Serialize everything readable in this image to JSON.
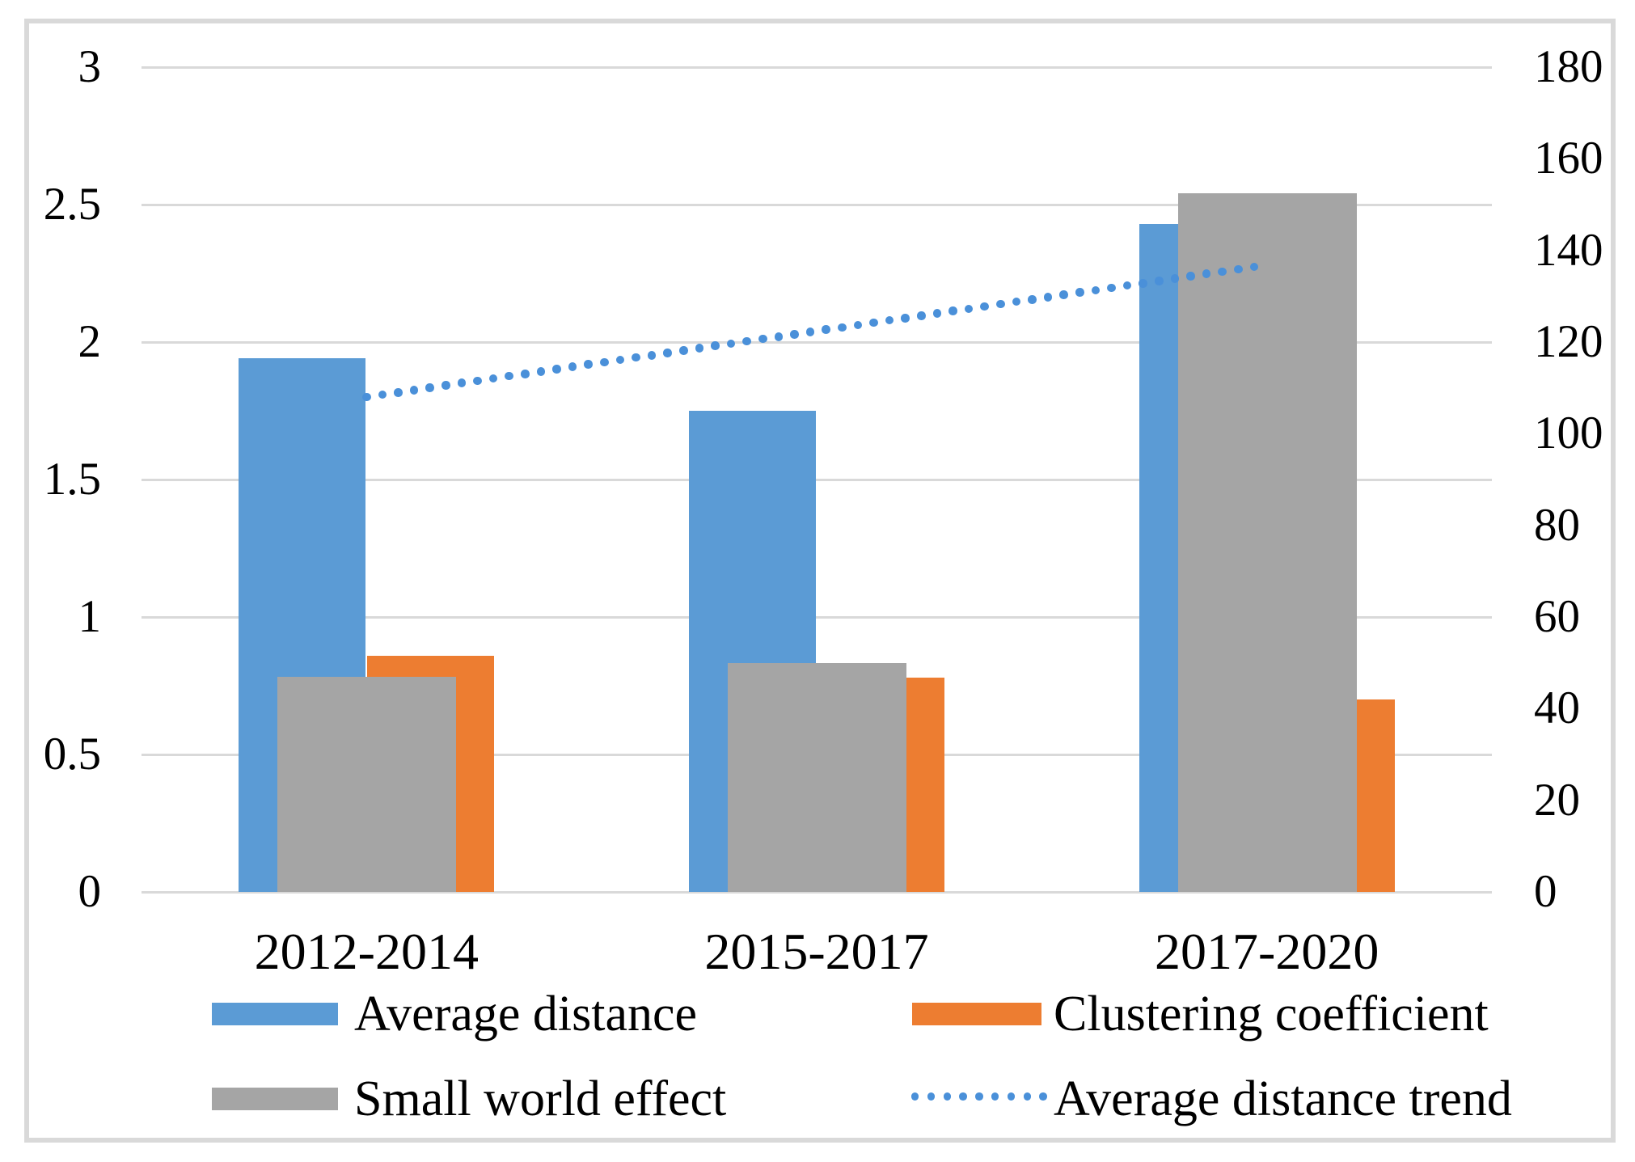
{
  "chart_data": {
    "type": "bar",
    "title": "",
    "categories": [
      "2012-2014",
      "2015-2017",
      "2017-2020"
    ],
    "series": [
      {
        "name": "Average distance",
        "type": "bar",
        "axis": "primary",
        "color": "#5B9BD5",
        "values": [
          1.94,
          1.75,
          2.43
        ]
      },
      {
        "name": "Clustering coefficient",
        "type": "bar",
        "axis": "primary",
        "color": "#ED7D31",
        "values": [
          0.86,
          0.78,
          0.7
        ]
      },
      {
        "name": "Small world effect",
        "type": "bar",
        "axis": "secondary",
        "color": "#A5A5A5",
        "values": [
          47,
          50,
          152.5
        ]
      },
      {
        "name": "Average distance trend",
        "type": "dotted_trendline",
        "axis": "primary",
        "color": "#4A90D9",
        "values": [
          1.8,
          2.04,
          2.28
        ]
      }
    ],
    "primary_axis": {
      "min": 0,
      "max": 3,
      "tick_step": 0.5,
      "tick_labels": [
        "0",
        "0.5",
        "1",
        "1.5",
        "2",
        "2.5",
        "3"
      ]
    },
    "secondary_axis": {
      "min": 0,
      "max": 180,
      "tick_step": 20,
      "tick_labels": [
        "0",
        "20",
        "40",
        "60",
        "80",
        "100",
        "120",
        "140",
        "160",
        "180"
      ]
    },
    "gridlines": "horizontal",
    "legend_position": "bottom"
  },
  "legend": {
    "items": [
      {
        "label": "Average distance",
        "swatch": "rect",
        "color": "#5B9BD5"
      },
      {
        "label": "Clustering coefficient",
        "swatch": "rect",
        "color": "#ED7D31"
      },
      {
        "label": "Small world effect",
        "swatch": "rect",
        "color": "#A5A5A5"
      },
      {
        "label": "Average distance trend",
        "swatch": "dotted-line",
        "color": "#4A90D9"
      }
    ]
  },
  "colors": {
    "background": "#FFFFFF",
    "frame_border": "#D9D9D9",
    "gridline": "#D9D9D9",
    "text": "#000000"
  }
}
